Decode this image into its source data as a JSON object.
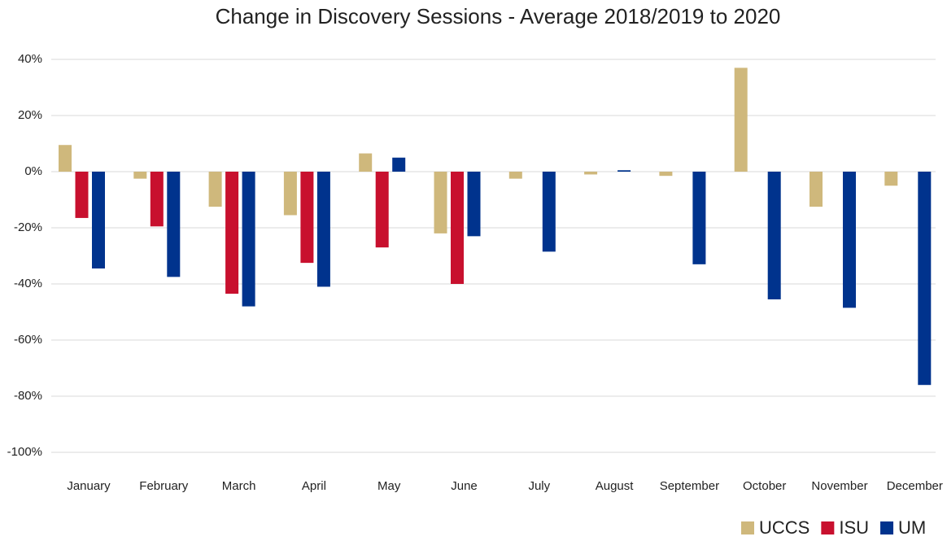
{
  "chart_data": {
    "type": "bar",
    "title": "Change in Discovery Sessions - Average 2018/2019 to 2020",
    "categories": [
      "January",
      "February",
      "March",
      "April",
      "May",
      "June",
      "July",
      "August",
      "September",
      "October",
      "November",
      "December"
    ],
    "series": [
      {
        "name": "UCCS",
        "color": "#cfb87c",
        "values": [
          9.5,
          -2.5,
          -12.5,
          -15.5,
          6.5,
          -22,
          -2.5,
          -1,
          -1.5,
          37,
          -12.5,
          -5
        ]
      },
      {
        "name": "ISU",
        "color": "#c8102e",
        "values": [
          -16.5,
          -19.5,
          -43.5,
          -32.5,
          -27,
          -40,
          null,
          null,
          null,
          null,
          null,
          null
        ]
      },
      {
        "name": "UM",
        "color": "#00338d",
        "values": [
          -34.5,
          -37.5,
          -48,
          -41,
          5,
          -23,
          -28.5,
          0.5,
          -33,
          -45.5,
          -48.5,
          -76
        ]
      }
    ],
    "ylim": [
      -100,
      40
    ],
    "yticks": [
      {
        "value": -100,
        "label": "-100%"
      },
      {
        "value": -80,
        "label": "-80%"
      },
      {
        "value": -60,
        "label": "-60%"
      },
      {
        "value": -40,
        "label": "-40%"
      },
      {
        "value": -20,
        "label": "-20%"
      },
      {
        "value": 0,
        "label": "0%"
      },
      {
        "value": 20,
        "label": "20%"
      },
      {
        "value": 40,
        "label": "40%"
      }
    ],
    "grid": true,
    "legend": "bottom-right"
  }
}
